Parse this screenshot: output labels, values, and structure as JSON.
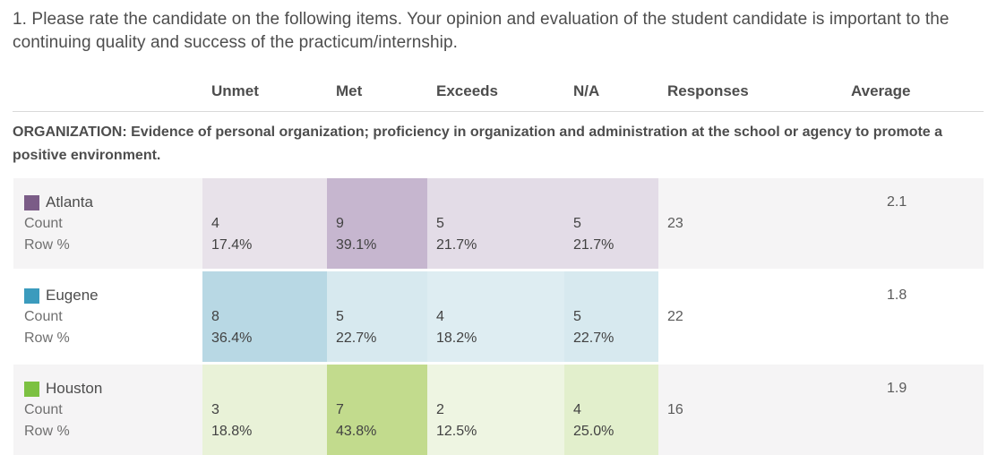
{
  "question": {
    "title": "1. Please rate the candidate on the following items. Your opinion and evaluation of the student candidate is important to the continuing quality and success of the practicum/internship."
  },
  "columns": {
    "unmet": "Unmet",
    "met": "Met",
    "exceeds": "Exceeds",
    "na": "N/A",
    "responses": "Responses",
    "average": "Average"
  },
  "section": {
    "heading": "ORGANIZATION: Evidence of personal organization; proficiency in organization and administration at the school or agency to promote a positive environment."
  },
  "labels": {
    "count": "Count",
    "row_pct": "Row %"
  },
  "rows": [
    {
      "city": "Atlanta",
      "swatch_color": "#7b5c87",
      "cells": [
        {
          "count": "4",
          "pct": "17.4%",
          "bg": "#e8e2ea"
        },
        {
          "count": "9",
          "pct": "39.1%",
          "bg": "#c6b6cf"
        },
        {
          "count": "5",
          "pct": "21.7%",
          "bg": "#e3dce7"
        },
        {
          "count": "5",
          "pct": "21.7%",
          "bg": "#e3dce7"
        }
      ],
      "responses": "23",
      "average": "2.1"
    },
    {
      "city": "Eugene",
      "swatch_color": "#3b9bbd",
      "cells": [
        {
          "count": "8",
          "pct": "36.4%",
          "bg": "#b8d8e4"
        },
        {
          "count": "5",
          "pct": "22.7%",
          "bg": "#d7e9ef"
        },
        {
          "count": "4",
          "pct": "18.2%",
          "bg": "#deedf2"
        },
        {
          "count": "5",
          "pct": "22.7%",
          "bg": "#d7e9ef"
        }
      ],
      "responses": "22",
      "average": "1.8"
    },
    {
      "city": "Houston",
      "swatch_color": "#7cc142",
      "cells": [
        {
          "count": "3",
          "pct": "18.8%",
          "bg": "#e9f2d8"
        },
        {
          "count": "7",
          "pct": "43.8%",
          "bg": "#c2db8d"
        },
        {
          "count": "2",
          "pct": "12.5%",
          "bg": "#eef5e2"
        },
        {
          "count": "4",
          "pct": "25.0%",
          "bg": "#e2efcc"
        }
      ],
      "responses": "16",
      "average": "1.9"
    }
  ],
  "colors": {
    "stripe_row_bg": "#f5f4f5",
    "divider": "#d9d9d9",
    "text_dark": "#4d4d4d",
    "text_gray": "#6f6f6f",
    "atlanta_accent": "#7b5c87",
    "eugene_accent": "#3b9bbd",
    "houston_accent": "#7cc142"
  },
  "chart_data": {
    "type": "table",
    "title": "1. Please rate the candidate on the following items. Your opinion and evaluation of the student candidate is important to the continuing quality and success of the practicum/internship.",
    "section": "ORGANIZATION: Evidence of personal organization; proficiency in organization and administration at the school or agency to promote a positive environment.",
    "columns": [
      "Unmet",
      "Met",
      "Exceeds",
      "N/A"
    ],
    "rows": [
      {
        "name": "Atlanta",
        "color": "#7b5c87",
        "counts": [
          4,
          9,
          5,
          5
        ],
        "row_pct": [
          17.4,
          39.1,
          21.7,
          21.7
        ],
        "responses": 23,
        "average": 2.1
      },
      {
        "name": "Eugene",
        "color": "#3b9bbd",
        "counts": [
          8,
          5,
          4,
          5
        ],
        "row_pct": [
          36.4,
          22.7,
          18.2,
          22.7
        ],
        "responses": 22,
        "average": 1.8
      },
      {
        "name": "Houston",
        "color": "#7cc142",
        "counts": [
          3,
          7,
          2,
          4
        ],
        "row_pct": [
          18.8,
          43.8,
          12.5,
          25.0
        ],
        "responses": 16,
        "average": 1.9
      }
    ],
    "legend_position": "row-labels",
    "shading": "cell background intensity proportional to row percentage, hue per city"
  }
}
